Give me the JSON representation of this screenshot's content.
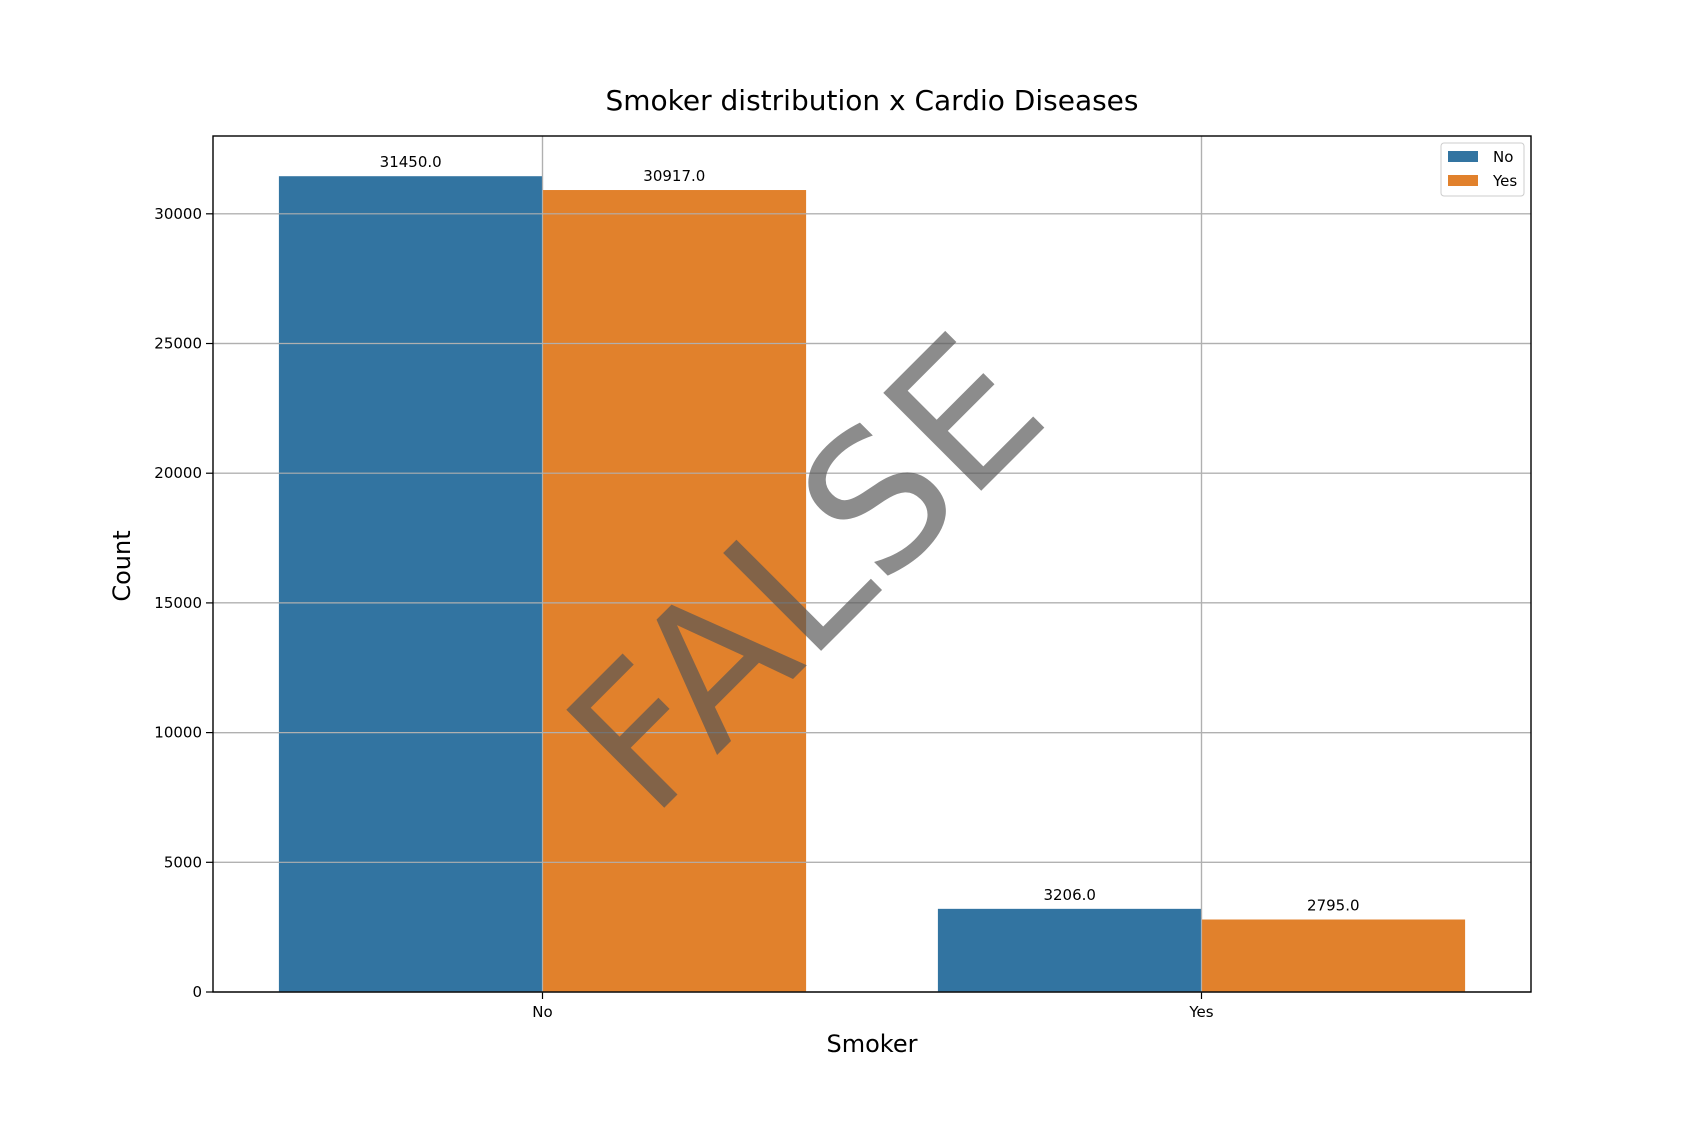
{
  "chart_data": {
    "type": "bar",
    "title": "Smoker distribution x Cardio Diseases",
    "xlabel": "Smoker",
    "ylabel": "Count",
    "categories": [
      "No",
      "Yes"
    ],
    "series": [
      {
        "name": "No",
        "color": "#3274a1",
        "values": [
          31450.0,
          3206.0
        ],
        "labels": [
          "31450.0",
          "3206.0"
        ]
      },
      {
        "name": "Yes",
        "color": "#e1812c",
        "values": [
          30917.0,
          2795.0
        ],
        "labels": [
          "30917.0",
          "2795.0"
        ]
      }
    ],
    "ylim": [
      0,
      33000
    ],
    "yticks": [
      0,
      5000,
      10000,
      15000,
      20000,
      25000,
      30000
    ],
    "ytick_labels": [
      "0",
      "5000",
      "10000",
      "15000",
      "20000",
      "25000",
      "30000"
    ],
    "grid": true,
    "legend_position": "top-right",
    "watermark": "FALSE"
  }
}
